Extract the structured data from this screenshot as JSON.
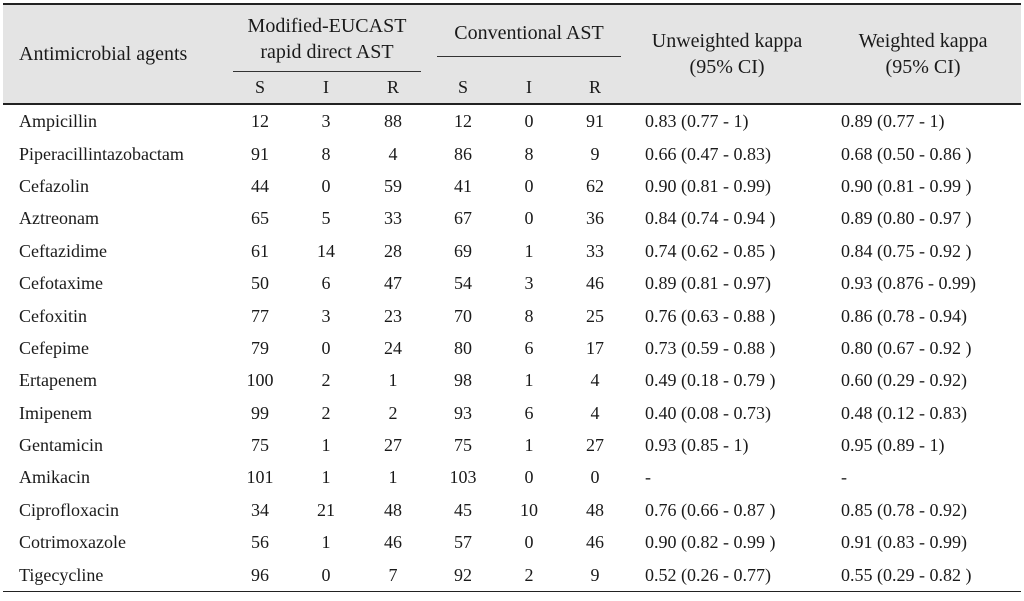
{
  "table": {
    "header": {
      "agents": "Antimicrobial agents",
      "group1": "Modified-EUCAST rapid direct AST",
      "group2": "Conventional AST",
      "unweighted": "Unweighted kappa (95% CI)",
      "weighted": "Weighted kappa (95% CI)",
      "sub": [
        "S",
        "I",
        "R",
        "S",
        "I",
        "R"
      ]
    },
    "rows": [
      [
        "Ampicillin",
        "12",
        "3",
        "88",
        "12",
        "0",
        "91",
        "0.83 (0.77 - 1)",
        "0.89 (0.77 - 1)"
      ],
      [
        "Piperacillintazobactam",
        "91",
        "8",
        "4",
        "86",
        "8",
        "9",
        "0.66 (0.47 - 0.83)",
        "0.68 (0.50 - 0.86 )"
      ],
      [
        "Cefazolin",
        "44",
        "0",
        "59",
        "41",
        "0",
        "62",
        "0.90 (0.81 - 0.99)",
        "0.90 (0.81 - 0.99 )"
      ],
      [
        "Aztreonam",
        "65",
        "5",
        "33",
        "67",
        "0",
        "36",
        "0.84 (0.74 - 0.94 )",
        "0.89 (0.80 - 0.97 )"
      ],
      [
        "Ceftazidime",
        "61",
        "14",
        "28",
        "69",
        "1",
        "33",
        "0.74 (0.62 - 0.85 )",
        "0.84 (0.75 - 0.92 )"
      ],
      [
        "Cefotaxime",
        "50",
        "6",
        "47",
        "54",
        "3",
        "46",
        "0.89 (0.81 - 0.97)",
        "0.93 (0.876 - 0.99)"
      ],
      [
        "Cefoxitin",
        "77",
        "3",
        "23",
        "70",
        "8",
        "25",
        "0.76 (0.63 - 0.88 )",
        "0.86 (0.78 - 0.94)"
      ],
      [
        "Cefepime",
        "79",
        "0",
        "24",
        "80",
        "6",
        "17",
        "0.73 (0.59 - 0.88 )",
        "0.80 (0.67 - 0.92 )"
      ],
      [
        "Ertapenem",
        "100",
        "2",
        "1",
        "98",
        "1",
        "4",
        "0.49 (0.18 - 0.79 )",
        "0.60 (0.29 - 0.92)"
      ],
      [
        "Imipenem",
        "99",
        "2",
        "2",
        "93",
        "6",
        "4",
        "0.40 (0.08 - 0.73)",
        "0.48 (0.12 - 0.83)"
      ],
      [
        "Gentamicin",
        "75",
        "1",
        "27",
        "75",
        "1",
        "27",
        "0.93 (0.85 - 1)",
        "0.95 (0.89 - 1)"
      ],
      [
        "Amikacin",
        "101",
        "1",
        "1",
        "103",
        "0",
        "0",
        "-",
        "-"
      ],
      [
        "Ciprofloxacin",
        "34",
        "21",
        "48",
        "45",
        "10",
        "48",
        "0.76 (0.66 - 0.87 )",
        "0.85 (0.78 - 0.92)"
      ],
      [
        "Cotrimoxazole",
        "56",
        "1",
        "46",
        "57",
        "0",
        "46",
        "0.90 (0.82 - 0.99 )",
        "0.91 (0.83 - 0.99)"
      ],
      [
        "Tigecycline",
        "96",
        "0",
        "7",
        "92",
        "2",
        "9",
        "0.52 (0.26 - 0.77)",
        "0.55 (0.29 - 0.82 )"
      ]
    ]
  }
}
